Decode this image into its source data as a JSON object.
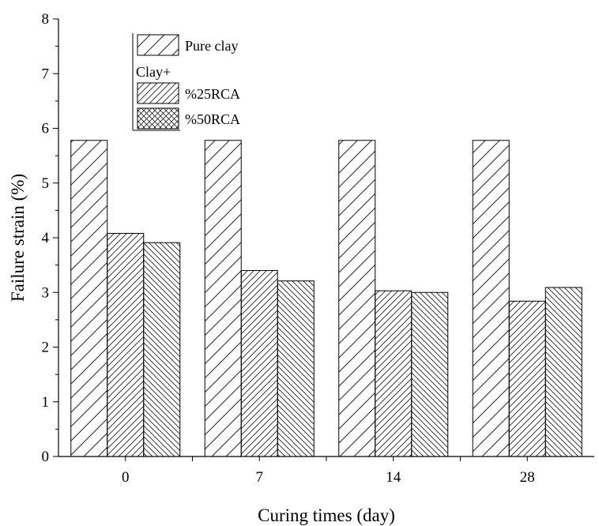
{
  "chart_data": {
    "type": "bar",
    "xlabel": "Curing times (day)",
    "ylabel": "Failure strain (%)",
    "ylim": [
      0,
      8
    ],
    "yticks": [
      "0",
      "1",
      "2",
      "3",
      "4",
      "5",
      "6",
      "7",
      "8"
    ],
    "categories": [
      "0",
      "7",
      "14",
      "28"
    ],
    "legend_placement": "top-left",
    "legend_group_label": "Clay+",
    "series": [
      {
        "name": "Pure clay",
        "values": [
          5.78,
          5.78,
          5.78,
          5.78
        ],
        "pattern": "diag-up"
      },
      {
        "name": "%25RCA",
        "values": [
          4.08,
          3.4,
          3.03,
          2.84
        ],
        "pattern": "diag-up-dense"
      },
      {
        "name": "%50RCA",
        "values": [
          3.91,
          3.21,
          3.0,
          3.09
        ],
        "pattern": "diag-down-dense"
      }
    ],
    "grid": false
  }
}
